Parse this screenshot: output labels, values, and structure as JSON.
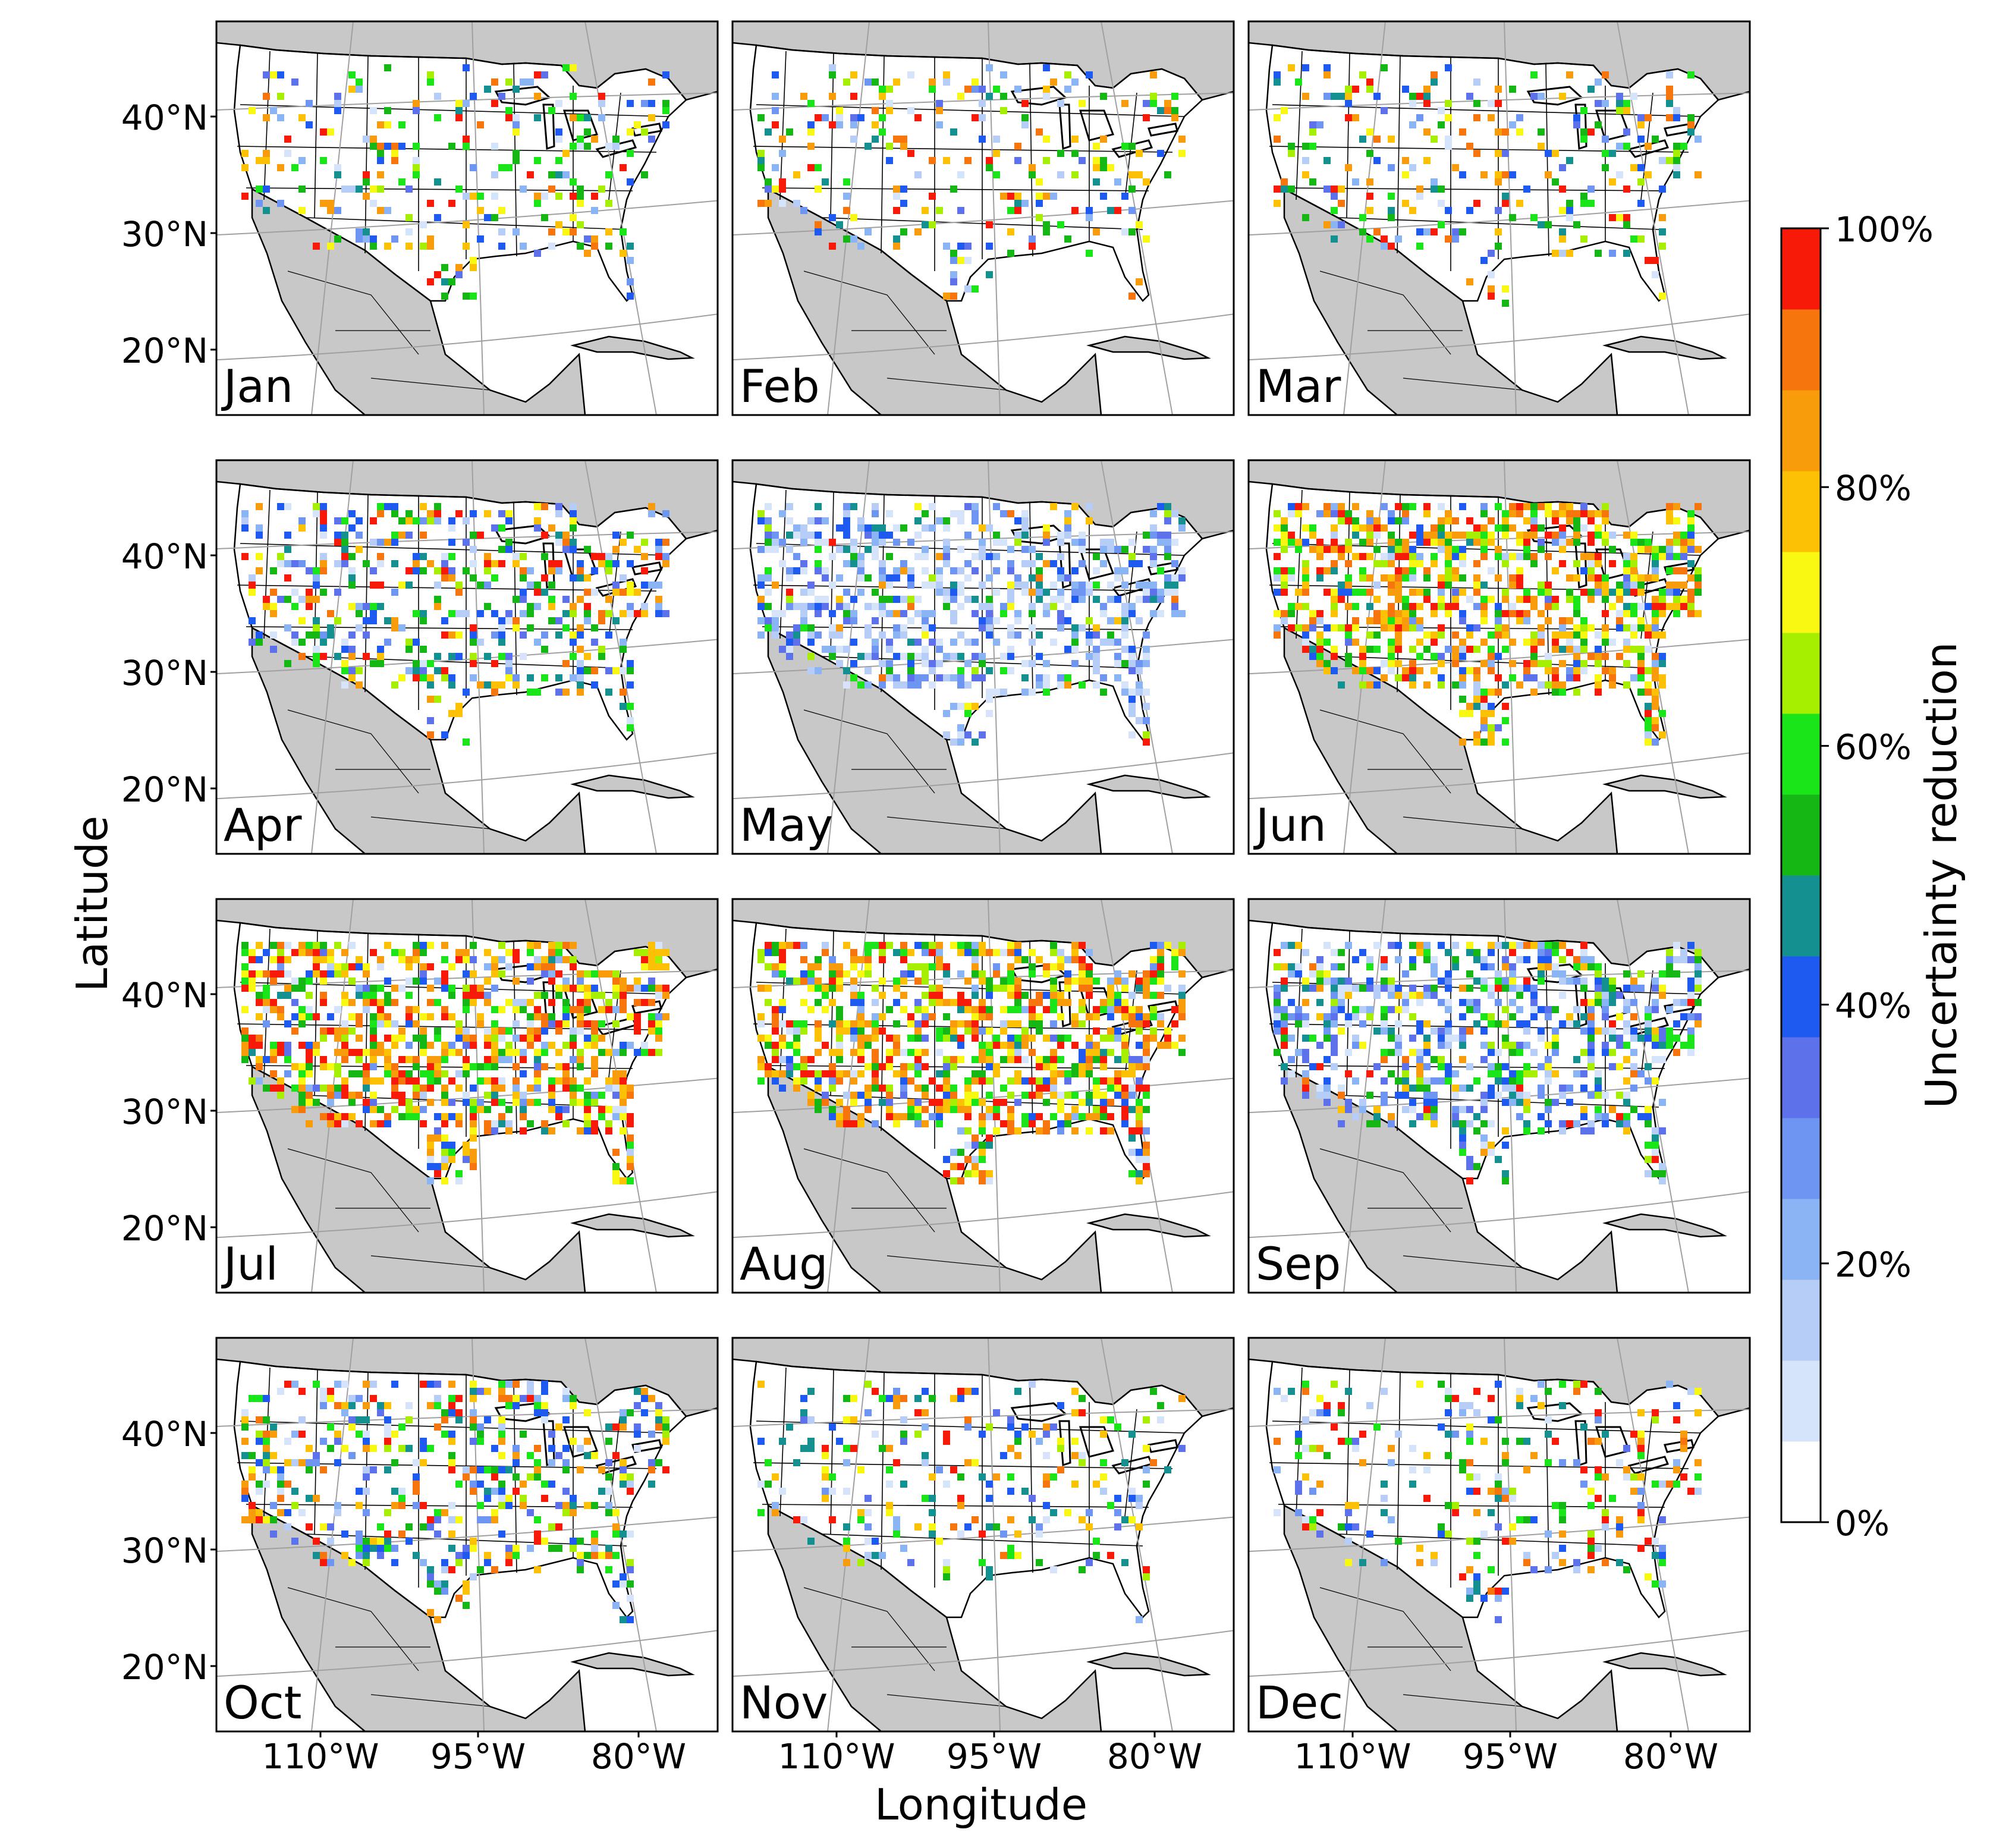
{
  "figure": {
    "xlabel": "Longitude",
    "ylabel": "Latitude",
    "lat_ticks": [
      "40°N",
      "30°N",
      "20°N"
    ],
    "lon_ticks": [
      "110°W",
      "95°W",
      "80°W"
    ]
  },
  "panels": [
    {
      "label": "Jan",
      "palette": "sparse_mixed"
    },
    {
      "label": "Feb",
      "palette": "sparse_mixed"
    },
    {
      "label": "Mar",
      "palette": "sparse_mixed"
    },
    {
      "label": "Apr",
      "palette": "moderate_mixed"
    },
    {
      "label": "May",
      "palette": "blue_dominant"
    },
    {
      "label": "Jun",
      "palette": "dense_warm"
    },
    {
      "label": "Jul",
      "palette": "dense_warm"
    },
    {
      "label": "Aug",
      "palette": "dense_warm"
    },
    {
      "label": "Sep",
      "palette": "blue_green"
    },
    {
      "label": "Oct",
      "palette": "moderate_mixed"
    },
    {
      "label": "Nov",
      "palette": "sparse_mixed"
    },
    {
      "label": "Dec",
      "palette": "sparse_mixed"
    }
  ],
  "colorbar": {
    "label": "Uncertainty reduction",
    "tick_labels": [
      "100%",
      "80%",
      "60%",
      "40%",
      "20%",
      "0%"
    ],
    "colors": [
      "#ffffff",
      "#d6e4fb",
      "#b5cdf7",
      "#8bb4f5",
      "#6f95f2",
      "#5d72ea",
      "#1f5af0",
      "#159091",
      "#14b714",
      "#19e519",
      "#a6ef00",
      "#f8f812",
      "#fcc004",
      "#f99c0c",
      "#f6760d",
      "#f81a09"
    ],
    "min": 0,
    "max": 100
  },
  "colors": {
    "land_gray": "#c8c8c8",
    "ocean": "#ffffff",
    "border": "#000000",
    "graticule": "#a0a0a0"
  }
}
